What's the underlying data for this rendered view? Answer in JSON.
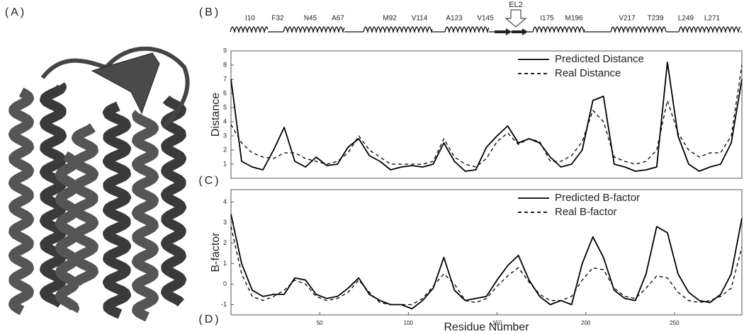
{
  "figure": {
    "panels": [
      "(A)",
      "(B)",
      "(C)",
      "(D)"
    ],
    "structure_labels": [
      "I10",
      "F32",
      "N45",
      "A67",
      "M92",
      "V114",
      "A123",
      "V145",
      "I175",
      "M196",
      "V217",
      "T239",
      "L249",
      "L271"
    ],
    "loop_label": "EL2"
  },
  "chart_data": [
    {
      "type": "line",
      "ylabel": "Distance",
      "x": [
        0,
        6,
        12,
        18,
        24,
        30,
        36,
        42,
        48,
        54,
        60,
        66,
        72,
        78,
        84,
        90,
        96,
        102,
        108,
        114,
        120,
        126,
        132,
        138,
        144,
        150,
        156,
        162,
        168,
        174,
        180,
        186,
        192,
        198,
        204,
        210,
        216,
        222,
        228,
        234,
        240,
        246,
        252,
        258,
        264,
        270,
        276,
        282,
        288
      ],
      "xlim": [
        0,
        288
      ],
      "ylim": [
        0,
        9
      ],
      "yticks": [
        1,
        2,
        3,
        4,
        5,
        6,
        7,
        8,
        9
      ],
      "grid": false,
      "legend": "top-right",
      "series": [
        {
          "name": "Predicted Distance",
          "color": "#000000",
          "linestyle": "solid",
          "values": [
            7,
            1.2,
            0.8,
            0.6,
            2.0,
            3.6,
            1.2,
            0.8,
            1.5,
            0.9,
            1.0,
            2.2,
            2.8,
            1.6,
            1.2,
            0.6,
            0.8,
            0.9,
            0.8,
            1.0,
            2.5,
            1.2,
            0.5,
            0.6,
            2.2,
            3.0,
            3.7,
            2.5,
            2.8,
            2.5,
            1.5,
            0.8,
            1.0,
            2.0,
            5.5,
            5.8,
            1.0,
            0.8,
            0.5,
            0.6,
            0.8,
            8.2,
            3.0,
            1.0,
            0.5,
            0.8,
            1.0,
            2.5,
            7.0
          ]
        },
        {
          "name": "Real Distance",
          "color": "#000000",
          "linestyle": "dashed",
          "values": [
            3.8,
            2.5,
            1.8,
            1.5,
            1.4,
            1.8,
            1.8,
            1.4,
            1.2,
            1.0,
            1.2,
            1.8,
            3.0,
            2.0,
            1.5,
            1.0,
            1.0,
            1.0,
            1.0,
            1.2,
            2.8,
            1.5,
            1.0,
            0.8,
            1.4,
            2.6,
            3.2,
            2.4,
            2.8,
            2.6,
            1.2,
            1.2,
            1.6,
            2.6,
            4.8,
            4.0,
            1.5,
            1.2,
            1.0,
            1.2,
            2.0,
            5.5,
            3.2,
            2.0,
            1.5,
            1.8,
            1.8,
            3.0,
            8.0
          ]
        }
      ]
    },
    {
      "type": "line",
      "ylabel": "B-factor",
      "xlabel": "Residue Number",
      "x": [
        0,
        6,
        12,
        18,
        24,
        30,
        36,
        42,
        48,
        54,
        60,
        66,
        72,
        78,
        84,
        90,
        96,
        102,
        108,
        114,
        120,
        126,
        132,
        138,
        144,
        150,
        156,
        162,
        168,
        174,
        180,
        186,
        192,
        198,
        204,
        210,
        216,
        222,
        228,
        234,
        240,
        246,
        252,
        258,
        264,
        270,
        276,
        282,
        288
      ],
      "xlim": [
        0,
        288
      ],
      "xticks": [
        50,
        100,
        150,
        200,
        250
      ],
      "ylim": [
        -1.5,
        4.6
      ],
      "yticks": [
        -1,
        0,
        1,
        2,
        3,
        4
      ],
      "grid": false,
      "legend": "top-right",
      "series": [
        {
          "name": "Predicted B-factor",
          "color": "#000000",
          "linestyle": "solid",
          "values": [
            3.4,
            1.0,
            -0.3,
            -0.6,
            -0.5,
            -0.5,
            0.3,
            0.2,
            -0.5,
            -0.7,
            -0.6,
            -0.2,
            0.3,
            -0.5,
            -0.8,
            -1.0,
            -1.0,
            -1.2,
            -0.8,
            -0.2,
            1.3,
            -0.3,
            -0.8,
            -0.7,
            -0.6,
            0.2,
            0.9,
            1.4,
            0.2,
            -0.6,
            -1.0,
            -0.8,
            -1.0,
            1.0,
            2.3,
            1.3,
            -0.3,
            -0.7,
            -0.8,
            0.5,
            2.8,
            2.5,
            0.5,
            -0.4,
            -0.8,
            -0.9,
            -0.5,
            0.5,
            3.2
          ]
        },
        {
          "name": "Real B-factor",
          "color": "#000000",
          "linestyle": "dashed",
          "values": [
            2.8,
            0.5,
            -0.6,
            -0.8,
            -0.6,
            -0.3,
            0.2,
            0.0,
            -0.6,
            -0.8,
            -0.7,
            -0.4,
            0.2,
            -0.4,
            -0.9,
            -1.0,
            -1.0,
            -1.0,
            -0.7,
            -0.1,
            0.5,
            0.0,
            -0.8,
            -0.9,
            -0.7,
            -0.1,
            0.4,
            0.8,
            0.1,
            -0.5,
            -0.8,
            -0.8,
            -0.6,
            0.2,
            0.8,
            0.7,
            -0.2,
            -0.6,
            -0.7,
            -0.2,
            0.4,
            0.3,
            -0.4,
            -0.8,
            -0.9,
            -0.8,
            -0.6,
            -0.2,
            1.8
          ]
        }
      ]
    }
  ]
}
